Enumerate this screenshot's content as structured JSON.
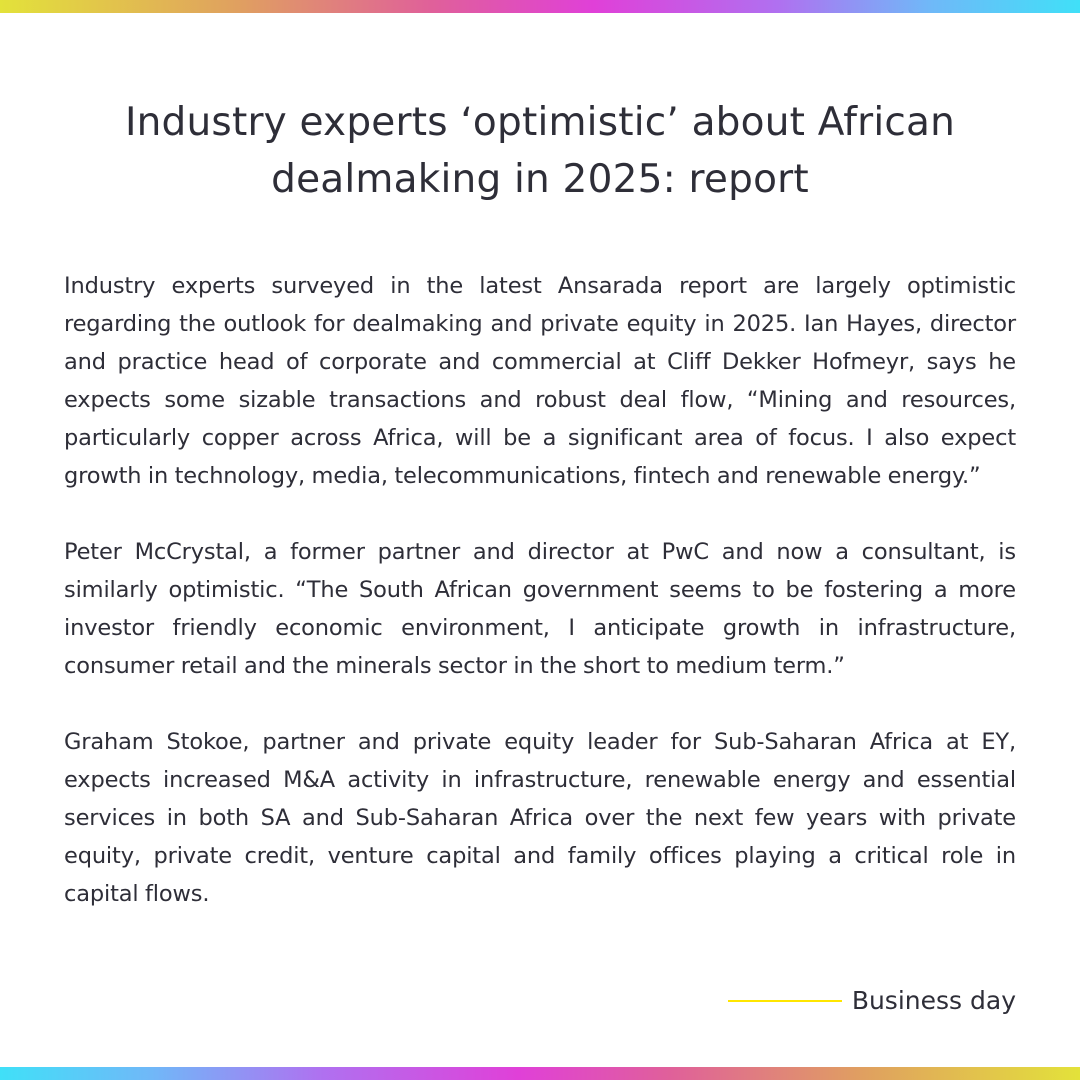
{
  "headline": "Industry experts ‘optimistic’ about African dealmaking in 2025: report",
  "paragraphs": [
    "Industry experts surveyed in the latest Ansarada report are largely optimistic regarding the outlook for dealmaking and private equity in 2025. Ian Hayes, director and practice head of corporate and commercial at Cliff Dekker Hofmeyr, says he expects some sizable transactions and robust deal flow, “Mining and resources, particularly copper across Africa, will be a significant area of focus. I also expect growth in technology, media, telecommunications, fintech and renewable energy.”",
    "Peter McCrystal, a former partner and director at PwC and now a consultant, is similarly optimistic. “The South African government seems to be fostering a more investor friendly economic environment, I anticipate growth in infrastructure, consumer retail and the minerals sector in the short to medium term.”",
    "Graham Stokoe, partner and private equity leader for Sub-Saharan Africa at EY, expects increased M&A activity in infrastructure, renewable energy and essential services in both SA and Sub-Saharan Africa over the next few years with private equity, private credit, venture capital and family offices playing a critical role in capital flows."
  ],
  "source": {
    "label": "Business day",
    "rule_color": "#ffe600"
  },
  "colors": {
    "text": "#2e2e38",
    "background": "#ffffff",
    "accent": "#ffe600"
  }
}
